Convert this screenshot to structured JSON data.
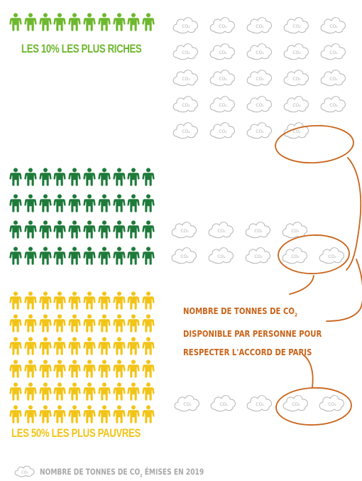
{
  "colors": {
    "rich": "#6db82e",
    "middle": "#1e7a3a",
    "poor": "#f2c418",
    "cloud_stroke": "#b9b9b9",
    "cloud_text": "#b0b0b0",
    "annotation": "#c9641a",
    "legend_text": "#a8a8a8"
  },
  "icons": {
    "person": "person-icon",
    "cloud": "co2-cloud-icon"
  },
  "groups": {
    "richest": {
      "label": "LES 10% LES PLUS RICHES",
      "people_rows": 1,
      "people_per_row": 10,
      "clouds": 24,
      "clouds_circled": 2
    },
    "middle": {
      "label": "",
      "people_rows": 4,
      "people_per_row": 10,
      "clouds": 9,
      "clouds_circled": 2
    },
    "poorest": {
      "label": "LES 50% LES PLUS PAUVRES",
      "people_rows": 6,
      "people_per_row": 10,
      "clouds": 5,
      "clouds_circled": 2
    }
  },
  "cloud_label": "CO₂",
  "annotation": {
    "line1_a": "NOMBRE DE TONNES DE CO",
    "line1_sub": "2",
    "line2_a": "DISPONIBLE PAR PERSONNE",
    "line2_b": " POUR",
    "line3": "RESPECTER L'ACCORD DE PARIS"
  },
  "legend": {
    "text_a": "NOMBRE DE TONNES DE CO",
    "text_sub": "2",
    "text_b": " ÉMISES EN 2019"
  }
}
